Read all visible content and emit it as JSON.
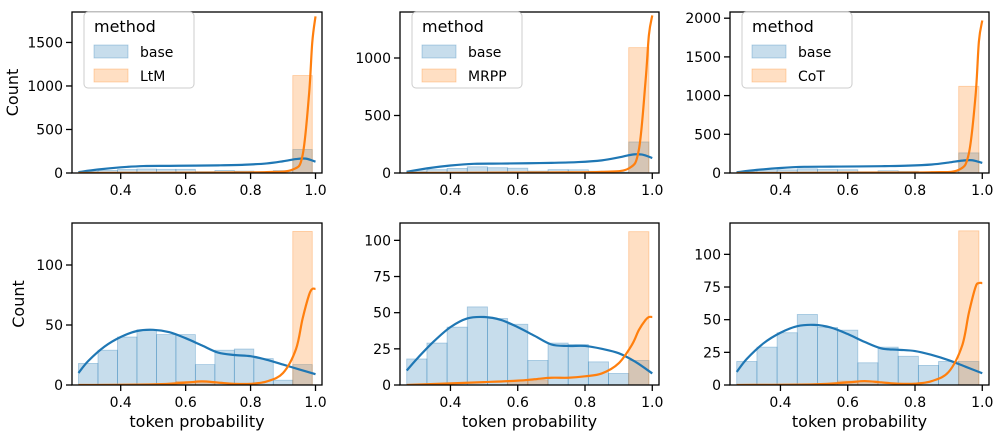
{
  "figure": {
    "bin_edges": [
      0.27,
      0.33,
      0.39,
      0.45,
      0.51,
      0.57,
      0.63,
      0.69,
      0.75,
      0.81,
      0.87,
      0.93,
      0.99
    ],
    "x_axis_label": "token probability",
    "y_axis_label": "Count",
    "legend_title": "method",
    "colors": {
      "base": "#1f77b4",
      "method": "#ff7f0e"
    }
  },
  "chart_data": [
    {
      "type": "histogram+kde",
      "row": 0,
      "col": 0,
      "xlim": [
        0.25,
        1.02
      ],
      "ylim": [
        0,
        1850
      ],
      "xticks": [
        "0.4",
        "0.6",
        "0.8",
        "1.0"
      ],
      "xtick_values": [
        0.4,
        0.6,
        0.8,
        1.0
      ],
      "yticks": [
        "0",
        "500",
        "1000",
        "1500"
      ],
      "ytick_values": [
        0,
        500,
        1000,
        1500
      ],
      "ylabel": "Count",
      "xlabel": "",
      "legend_position": "top-left",
      "series": [
        {
          "name": "base",
          "hist": [
            18,
            29,
            40,
            46,
            42,
            42,
            17,
            29,
            22,
            15,
            28,
            270
          ],
          "kde_x": [
            0.27,
            0.33,
            0.4,
            0.47,
            0.55,
            0.63,
            0.7,
            0.78,
            0.85,
            0.9,
            0.94,
            0.97,
            1.0
          ],
          "kde_y": [
            10,
            40,
            65,
            80,
            82,
            85,
            88,
            95,
            110,
            135,
            160,
            165,
            130
          ]
        },
        {
          "name": "LtM",
          "hist": [
            0,
            0,
            0,
            0,
            0,
            0,
            0,
            0,
            0,
            0,
            0,
            1120
          ],
          "kde_x": [
            0.27,
            0.5,
            0.7,
            0.85,
            0.93,
            0.96,
            0.98,
            0.99,
            1.0
          ],
          "kde_y": [
            0,
            2,
            5,
            10,
            40,
            200,
            900,
            1500,
            1800
          ]
        }
      ]
    },
    {
      "type": "histogram+kde",
      "row": 0,
      "col": 1,
      "xlim": [
        0.25,
        1.02
      ],
      "ylim": [
        0,
        1400
      ],
      "xticks": [
        "0.4",
        "0.6",
        "0.8",
        "1.0"
      ],
      "xtick_values": [
        0.4,
        0.6,
        0.8,
        1.0
      ],
      "yticks": [
        "0",
        "500",
        "1000"
      ],
      "ytick_values": [
        0,
        500,
        1000
      ],
      "ylabel": "",
      "xlabel": "",
      "legend_position": "top-left",
      "series": [
        {
          "name": "base",
          "hist": [
            18,
            29,
            40,
            54,
            46,
            42,
            17,
            29,
            28,
            16,
            8,
            270
          ],
          "kde_x": [
            0.27,
            0.33,
            0.4,
            0.47,
            0.55,
            0.63,
            0.7,
            0.78,
            0.85,
            0.9,
            0.94,
            0.97,
            1.0
          ],
          "kde_y": [
            10,
            40,
            65,
            80,
            82,
            85,
            88,
            95,
            110,
            135,
            160,
            160,
            130
          ]
        },
        {
          "name": "MRPP",
          "hist": [
            0,
            0,
            0,
            0,
            0,
            0,
            0,
            0,
            0,
            0,
            0,
            1090
          ],
          "kde_x": [
            0.27,
            0.5,
            0.7,
            0.85,
            0.93,
            0.96,
            0.98,
            0.99,
            1.0
          ],
          "kde_y": [
            0,
            2,
            5,
            10,
            40,
            200,
            800,
            1200,
            1370
          ]
        }
      ]
    },
    {
      "type": "histogram+kde",
      "row": 0,
      "col": 2,
      "xlim": [
        0.25,
        1.02
      ],
      "ylim": [
        0,
        2080
      ],
      "xticks": [
        "0.4",
        "0.6",
        "0.8",
        "1.0"
      ],
      "xtick_values": [
        0.4,
        0.6,
        0.8,
        1.0
      ],
      "yticks": [
        "0",
        "500",
        "1000",
        "1500",
        "2000"
      ],
      "ytick_values": [
        0,
        500,
        1000,
        1500,
        2000
      ],
      "ylabel": "",
      "xlabel": "",
      "legend_position": "top-left",
      "series": [
        {
          "name": "base",
          "hist": [
            18,
            29,
            40,
            54,
            44,
            42,
            17,
            29,
            22,
            15,
            18,
            260
          ],
          "kde_x": [
            0.27,
            0.33,
            0.4,
            0.47,
            0.55,
            0.63,
            0.7,
            0.78,
            0.85,
            0.9,
            0.94,
            0.97,
            1.0
          ],
          "kde_y": [
            10,
            40,
            65,
            80,
            82,
            85,
            88,
            95,
            110,
            135,
            160,
            165,
            130
          ]
        },
        {
          "name": "CoT",
          "hist": [
            0,
            0,
            0,
            0,
            0,
            0,
            0,
            0,
            0,
            0,
            0,
            1120
          ],
          "kde_x": [
            0.27,
            0.5,
            0.7,
            0.85,
            0.93,
            0.96,
            0.98,
            0.99,
            1.0
          ],
          "kde_y": [
            0,
            2,
            5,
            10,
            40,
            250,
            1000,
            1700,
            1970
          ]
        }
      ]
    },
    {
      "type": "histogram+kde",
      "row": 1,
      "col": 0,
      "xlim": [
        0.25,
        1.02
      ],
      "ylim": [
        0,
        135
      ],
      "xticks": [
        "0.4",
        "0.6",
        "0.8",
        "1.0"
      ],
      "xtick_values": [
        0.4,
        0.6,
        0.8,
        1.0
      ],
      "yticks": [
        "0",
        "50",
        "100"
      ],
      "ytick_values": [
        0,
        50,
        100
      ],
      "ylabel": "Count",
      "xlabel": "token probability",
      "legend_position": "none",
      "series": [
        {
          "name": "base",
          "hist": [
            18,
            29,
            40,
            46,
            42,
            42,
            17,
            29,
            30,
            22,
            4,
            17
          ],
          "kde_x": [
            0.27,
            0.3,
            0.35,
            0.4,
            0.45,
            0.5,
            0.55,
            0.6,
            0.65,
            0.7,
            0.75,
            0.8,
            0.85,
            0.9,
            0.95,
            1.0
          ],
          "kde_y": [
            10,
            20,
            32,
            40,
            45,
            46,
            44,
            39,
            33,
            27,
            25,
            24,
            21,
            17,
            13,
            9
          ]
        },
        {
          "name": "LtM",
          "hist": [
            0,
            0,
            0,
            0,
            0,
            3,
            3,
            0,
            0,
            0,
            0,
            128
          ],
          "kde_x": [
            0.27,
            0.5,
            0.6,
            0.65,
            0.7,
            0.75,
            0.8,
            0.85,
            0.9,
            0.94,
            0.96,
            0.98,
            0.99,
            1.0
          ],
          "kde_y": [
            0,
            0.5,
            2,
            3,
            2,
            1,
            1,
            3,
            10,
            30,
            55,
            75,
            80,
            80
          ]
        }
      ]
    },
    {
      "type": "histogram+kde",
      "row": 1,
      "col": 1,
      "xlim": [
        0.25,
        1.02
      ],
      "ylim": [
        0,
        112
      ],
      "xticks": [
        "0.4",
        "0.6",
        "0.8",
        "1.0"
      ],
      "xtick_values": [
        0.4,
        0.6,
        0.8,
        1.0
      ],
      "yticks": [
        "0",
        "25",
        "50",
        "75",
        "100"
      ],
      "ytick_values": [
        0,
        25,
        50,
        75,
        100
      ],
      "ylabel": "",
      "xlabel": "token probability",
      "legend_position": "none",
      "series": [
        {
          "name": "base",
          "hist": [
            18,
            29,
            40,
            54,
            46,
            42,
            17,
            29,
            28,
            16,
            8,
            17
          ],
          "kde_x": [
            0.27,
            0.3,
            0.35,
            0.4,
            0.45,
            0.5,
            0.55,
            0.6,
            0.65,
            0.7,
            0.75,
            0.8,
            0.85,
            0.9,
            0.95,
            1.0
          ],
          "kde_y": [
            10,
            18,
            30,
            40,
            46,
            47,
            45,
            40,
            34,
            28,
            27,
            27,
            25,
            22,
            16,
            8
          ]
        },
        {
          "name": "MRPP",
          "hist": [
            0,
            0,
            0,
            0,
            0,
            3,
            3,
            0,
            0,
            0,
            0,
            106
          ],
          "kde_x": [
            0.27,
            0.5,
            0.6,
            0.65,
            0.7,
            0.75,
            0.8,
            0.85,
            0.9,
            0.94,
            0.96,
            0.98,
            0.99,
            1.0
          ],
          "kde_y": [
            0,
            2,
            3,
            4,
            5,
            5,
            6,
            8,
            15,
            28,
            38,
            45,
            47,
            47
          ]
        }
      ]
    },
    {
      "type": "histogram+kde",
      "row": 1,
      "col": 2,
      "xlim": [
        0.25,
        1.02
      ],
      "ylim": [
        0,
        124
      ],
      "xticks": [
        "0.4",
        "0.6",
        "0.8",
        "1.0"
      ],
      "xtick_values": [
        0.4,
        0.6,
        0.8,
        1.0
      ],
      "yticks": [
        "0",
        "25",
        "50",
        "75",
        "100"
      ],
      "ytick_values": [
        0,
        25,
        50,
        75,
        100
      ],
      "ylabel": "",
      "xlabel": "token probability",
      "legend_position": "none",
      "series": [
        {
          "name": "base",
          "hist": [
            18,
            29,
            40,
            54,
            44,
            42,
            17,
            29,
            22,
            15,
            18,
            18
          ],
          "kde_x": [
            0.27,
            0.3,
            0.35,
            0.4,
            0.45,
            0.5,
            0.55,
            0.6,
            0.65,
            0.7,
            0.75,
            0.8,
            0.85,
            0.9,
            0.95,
            1.0
          ],
          "kde_y": [
            10,
            20,
            32,
            40,
            45,
            46,
            44,
            39,
            33,
            28,
            27,
            26,
            23,
            19,
            14,
            9
          ]
        },
        {
          "name": "CoT",
          "hist": [
            0,
            0,
            0,
            0,
            0,
            3,
            3,
            0,
            0,
            0,
            0,
            118
          ],
          "kde_x": [
            0.27,
            0.5,
            0.6,
            0.65,
            0.7,
            0.75,
            0.8,
            0.85,
            0.9,
            0.94,
            0.96,
            0.98,
            0.99,
            1.0
          ],
          "kde_y": [
            0,
            0.5,
            2,
            3,
            2,
            1,
            1,
            3,
            10,
            30,
            55,
            75,
            78,
            78
          ]
        }
      ]
    }
  ]
}
